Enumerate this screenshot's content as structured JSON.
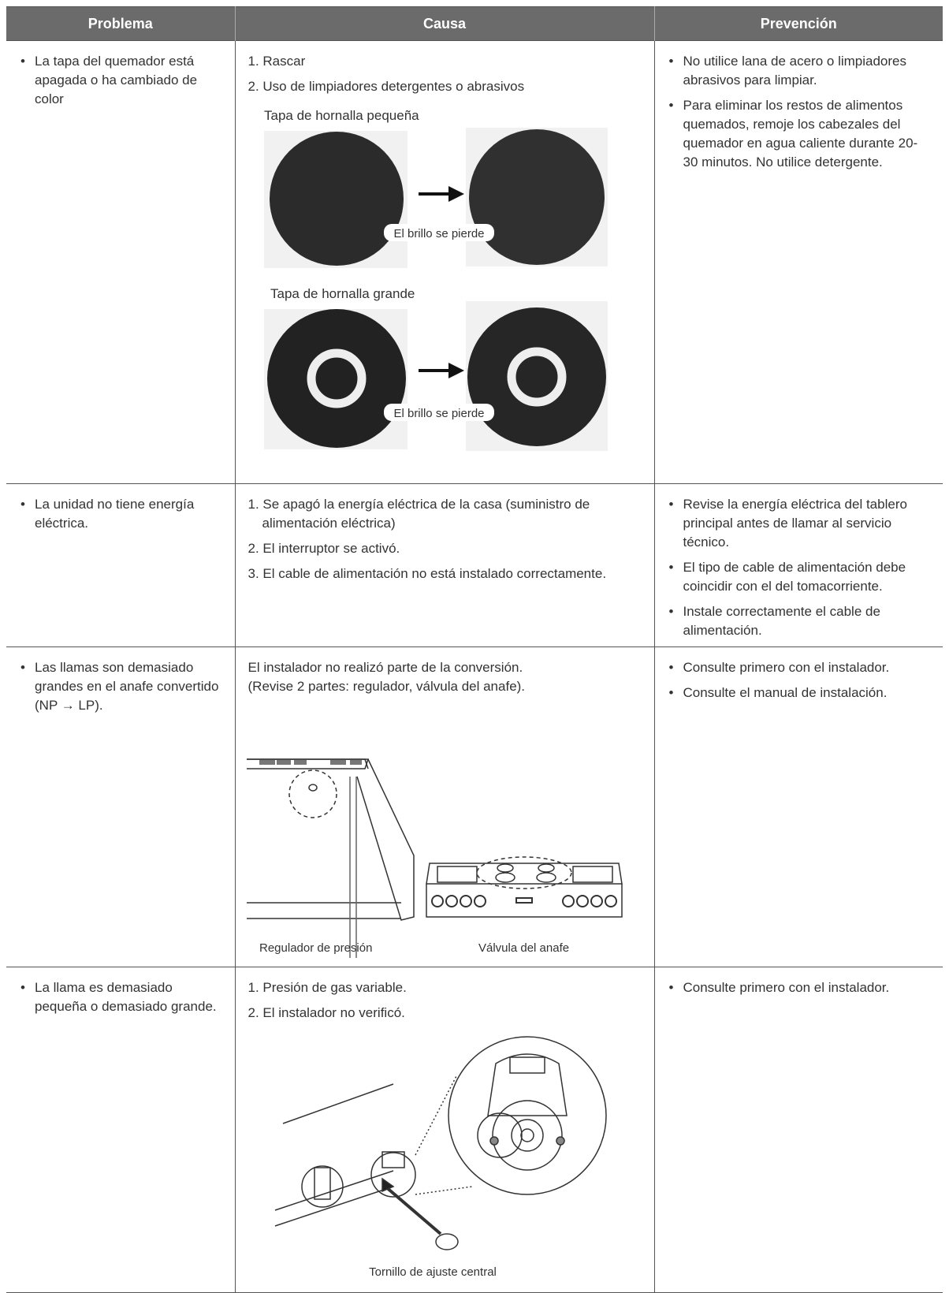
{
  "table": {
    "headers": [
      "Problema",
      "Causa",
      "Prevención"
    ],
    "rows": [
      {
        "problem": "La tapa del quemador está apagada o ha cambiado de color",
        "causes": [
          "1. Rascar",
          "2. Uso de limpiadores detergentes o abrasivos"
        ],
        "figure": {
          "small_title": "Tapa de hornalla pequeña",
          "small_note": "El brillo se pierde",
          "large_title": "Tapa de hornalla grande",
          "large_note": "El brillo se pierde"
        },
        "prevention": [
          "No utilice lana de acero o limpiadores abrasivos para limpiar.",
          "Para eliminar los restos de alimentos quemados, remoje los cabezales del quemador en agua caliente durante 20-30 minutos. No utilice detergente."
        ]
      },
      {
        "problem": "La unidad no tiene energía eléctrica.",
        "causes": [
          "1. Se apagó la energía eléctrica de la casa (suministro de alimentación eléctrica)",
          "2. El interruptor se activó.",
          "3. El cable de alimentación no está instalado correctamente."
        ],
        "prevention": [
          "Revise la energía eléctrica del tablero principal antes de llamar al servicio técnico.",
          "El tipo de cable de alimentación debe coincidir con el del tomacorriente.",
          "Instale correctamente el cable de alimentación."
        ]
      },
      {
        "problem": "Las llamas son demasiado grandes en el anafe convertido (NP → LP).",
        "causes": [
          "El instalador no realizó parte de la conversión.",
          "(Revise 2 partes: regulador, válvula del anafe)."
        ],
        "figure": {
          "left_caption": "Regulador de presión",
          "right_caption": "Válvula del anafe"
        },
        "prevention": [
          "Consulte primero con el instalador.",
          "Consulte el manual de instalación."
        ]
      },
      {
        "problem": "La llama es demasiado pequeña o demasiado grande.",
        "causes": [
          "1. Presión de gas variable.",
          "2. El instalador no verificó."
        ],
        "figure": {
          "caption": "Tornillo de ajuste central"
        },
        "prevention": [
          "Consulte primero con el instalador."
        ]
      }
    ]
  }
}
